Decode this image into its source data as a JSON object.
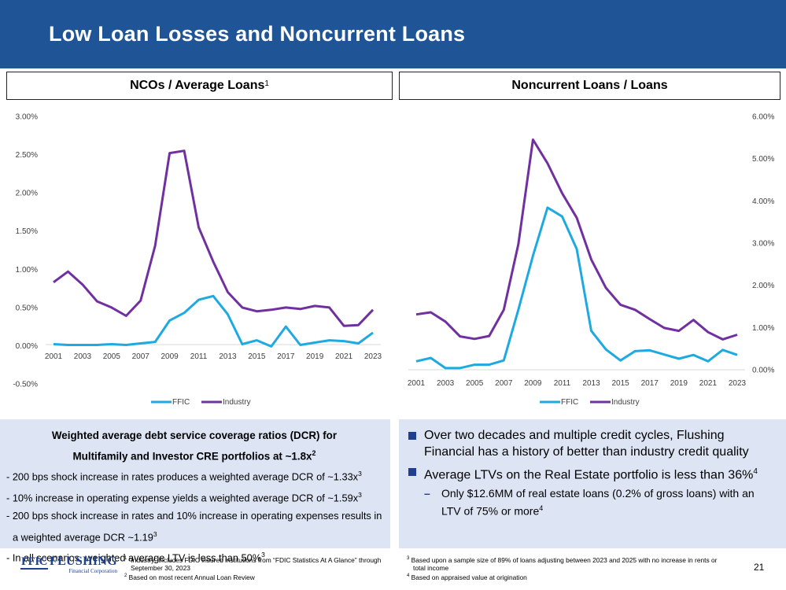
{
  "title": "Low Loan Losses and Noncurrent Loans",
  "left_panel": {
    "title": "NCOs / Average Loans",
    "title_sup": "1"
  },
  "right_panel": {
    "title": "Noncurrent Loans / Loans"
  },
  "chart_data": [
    {
      "type": "line",
      "title": "NCOs / Average Loans",
      "x": [
        2001,
        2002,
        2003,
        2004,
        2005,
        2006,
        2007,
        2008,
        2009,
        2010,
        2011,
        2012,
        2013,
        2014,
        2015,
        2016,
        2017,
        2018,
        2019,
        2020,
        2021,
        2022,
        2023
      ],
      "x_tick_labels": [
        "2001",
        "2003",
        "2005",
        "2007",
        "2009",
        "2011",
        "2013",
        "2015",
        "2017",
        "2019",
        "2021",
        "2023"
      ],
      "y_tick_labels": [
        "3.00%",
        "2.50%",
        "2.00%",
        "1.50%",
        "1.00%",
        "0.50%",
        "0.00%",
        "-0.50%"
      ],
      "ylim": [
        -0.5,
        3.0
      ],
      "y_axis_side": "left",
      "series": [
        {
          "name": "FFIC",
          "color": "#1eaae1",
          "values": [
            0.02,
            0.01,
            0.01,
            0.01,
            0.02,
            0.01,
            0.03,
            0.05,
            0.33,
            0.43,
            0.6,
            0.65,
            0.41,
            0.02,
            0.07,
            -0.01,
            0.25,
            0.01,
            0.04,
            0.07,
            0.06,
            0.03,
            0.17
          ]
        },
        {
          "name": "Industry",
          "color": "#7030a0",
          "values": [
            0.83,
            0.97,
            0.8,
            0.58,
            0.5,
            0.39,
            0.59,
            1.31,
            2.52,
            2.55,
            1.55,
            1.1,
            0.7,
            0.5,
            0.45,
            0.47,
            0.5,
            0.48,
            0.52,
            0.5,
            0.26,
            0.27,
            0.47
          ]
        }
      ],
      "legend": [
        "FFIC",
        "Industry"
      ],
      "legend_position": "bottom-center"
    },
    {
      "type": "line",
      "title": "Noncurrent Loans / Loans",
      "x": [
        2001,
        2002,
        2003,
        2004,
        2005,
        2006,
        2007,
        2008,
        2009,
        2010,
        2011,
        2012,
        2013,
        2014,
        2015,
        2016,
        2017,
        2018,
        2019,
        2020,
        2021,
        2022,
        2023
      ],
      "x_tick_labels": [
        "2001",
        "2003",
        "2005",
        "2007",
        "2009",
        "2011",
        "2013",
        "2015",
        "2017",
        "2019",
        "2021",
        "2023"
      ],
      "y_tick_labels": [
        "6.00%",
        "5.00%",
        "4.00%",
        "3.00%",
        "2.00%",
        "1.00%",
        "0.00%"
      ],
      "ylim": [
        0,
        6.0
      ],
      "y_axis_side": "right",
      "series": [
        {
          "name": "FFIC",
          "color": "#1eaae1",
          "values": [
            0.2,
            0.28,
            0.04,
            0.04,
            0.12,
            0.12,
            0.22,
            1.42,
            2.7,
            3.84,
            3.63,
            2.86,
            0.92,
            0.48,
            0.22,
            0.44,
            0.46,
            0.36,
            0.26,
            0.35,
            0.2,
            0.47,
            0.35
          ]
        },
        {
          "name": "Industry",
          "color": "#7030a0",
          "values": [
            1.31,
            1.36,
            1.14,
            0.79,
            0.73,
            0.8,
            1.42,
            2.97,
            5.45,
            4.89,
            4.18,
            3.6,
            2.61,
            1.94,
            1.54,
            1.42,
            1.2,
            0.99,
            0.92,
            1.18,
            0.89,
            0.72,
            0.83
          ]
        }
      ],
      "legend": [
        "FFIC",
        "Industry"
      ],
      "legend_position": "bottom-center"
    }
  ],
  "left_box": {
    "title_line1": "Weighted average debt service coverage ratios (DCR) for",
    "title_line2": "Multifamily and  Investor CRE portfolios at ~1.8x",
    "title_sup": "2",
    "lines": [
      {
        "text": "- 200 bps shock increase in rates produces a weighted average DCR of ~1.33x",
        "sup": "3"
      },
      {
        "text": "- 10% increase in operating expense yields a weighted average DCR of ~1.59x",
        "sup": "3"
      },
      {
        "text": "- 200 bps shock increase in rates and 10% increase in operating expenses results in a weighted average DCR ~1.19",
        "sup": "3"
      },
      {
        "text": "- In all scenarios, weighted average LTV is less than 50%",
        "sup": "3"
      }
    ]
  },
  "right_box": {
    "bullets": [
      {
        "text": "Over two decades and multiple credit cycles, Flushing Financial has a history of better than industry credit quality",
        "sup": ""
      },
      {
        "text": "Average LTVs on the Real Estate portfolio is less than 36%",
        "sup": "4"
      }
    ],
    "sub_dash": "–",
    "sub_bullet": {
      "text": "Only $12.6MM of real estate loans (0.2% of gross loans) with an LTV of 75% or more",
      "sup": "4"
    }
  },
  "logo": {
    "ffic": "FFIC",
    "name": "FLUSHING",
    "sub": "Financial Corporation"
  },
  "footnotes_left": [
    {
      "sup": "1",
      "text": "“Industry” includes FDIC insured institutions from “FDIC Statistics At A Glance” through September 30, 2023"
    },
    {
      "sup": "2",
      "text": "Based on most recent Annual Loan Review"
    }
  ],
  "footnotes_right": [
    {
      "sup": "3",
      "text": "Based upon a sample size of 89% of loans adjusting between 2023 and 2025 with no increase in rents or total income"
    },
    {
      "sup": "4",
      "text": "Based on appraised value at origination"
    }
  ],
  "page_number": "21"
}
